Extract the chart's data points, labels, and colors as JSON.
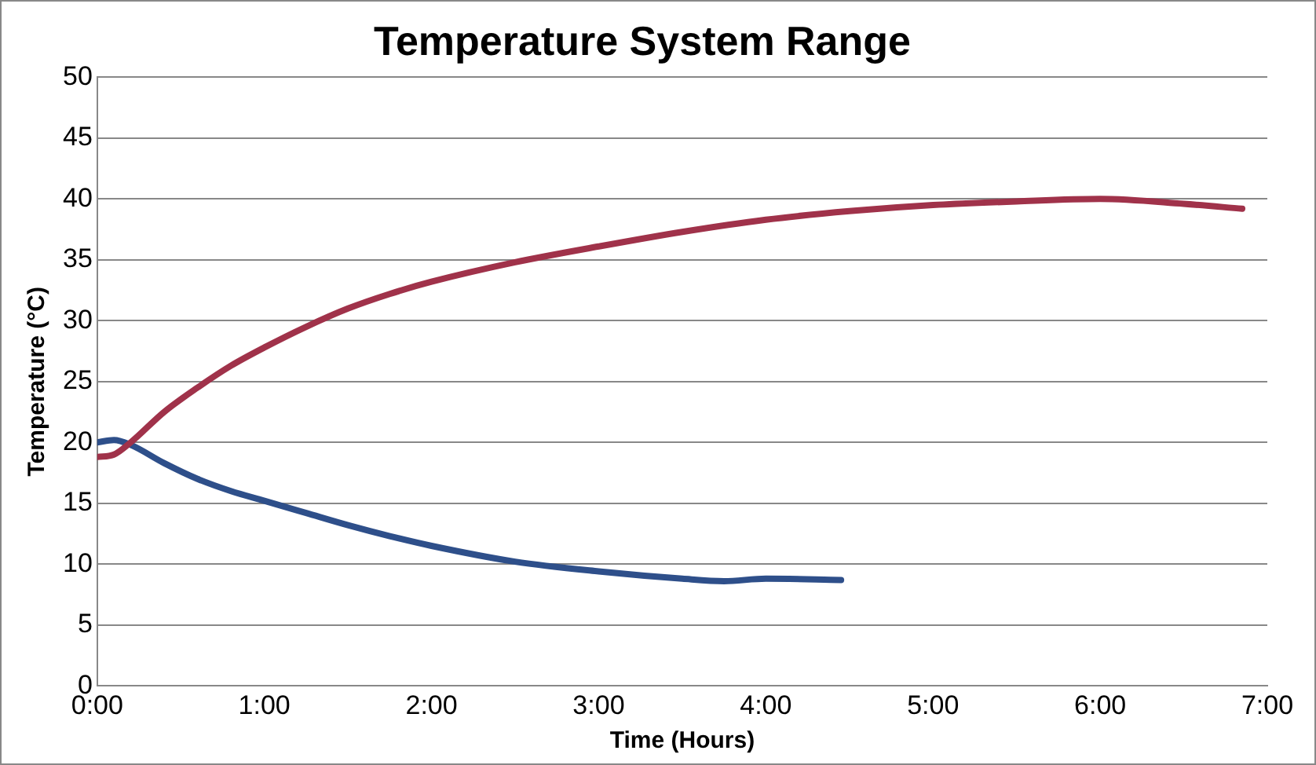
{
  "chart_data": {
    "type": "line",
    "title": "Temperature System Range",
    "xlabel": "Time (Hours)",
    "ylabel": "Temperature (°C)",
    "xlim": [
      0,
      7
    ],
    "xticks": [
      {
        "value": 0,
        "label": "0:00"
      },
      {
        "value": 1,
        "label": "1:00"
      },
      {
        "value": 2,
        "label": "2:00"
      },
      {
        "value": 3,
        "label": "3:00"
      },
      {
        "value": 4,
        "label": "4:00"
      },
      {
        "value": 5,
        "label": "5:00"
      },
      {
        "value": 6,
        "label": "6:00"
      },
      {
        "value": 7,
        "label": "7:00"
      }
    ],
    "ylim": [
      0,
      50
    ],
    "yticks": [
      0,
      5,
      10,
      15,
      20,
      25,
      30,
      35,
      40,
      45,
      50
    ],
    "grid": "y",
    "legend": false,
    "marker": "none",
    "line_style": "solid",
    "series": [
      {
        "color": "#a0324a",
        "x": [
          0,
          0.1,
          0.2,
          0.4,
          0.6,
          0.8,
          1,
          1.25,
          1.5,
          1.75,
          2,
          2.5,
          3,
          3.5,
          4,
          4.5,
          5,
          5.5,
          6,
          6.5,
          6.85
        ],
        "values": [
          18.8,
          19,
          20,
          22.5,
          24.5,
          26.3,
          27.8,
          29.5,
          31,
          32.2,
          33.2,
          34.8,
          36.1,
          37.3,
          38.3,
          39,
          39.5,
          39.8,
          40,
          39.6,
          39.2
        ]
      },
      {
        "color": "#2e4f8a",
        "x": [
          0,
          0.1,
          0.2,
          0.4,
          0.6,
          0.8,
          1,
          1.25,
          1.5,
          1.75,
          2,
          2.5,
          3,
          3.5,
          3.75,
          4,
          4.45
        ],
        "values": [
          20,
          20.2,
          19.8,
          18.3,
          17,
          16,
          15.2,
          14.2,
          13.2,
          12.3,
          11.5,
          10.2,
          9.4,
          8.8,
          8.6,
          8.8,
          8.7
        ]
      }
    ]
  }
}
